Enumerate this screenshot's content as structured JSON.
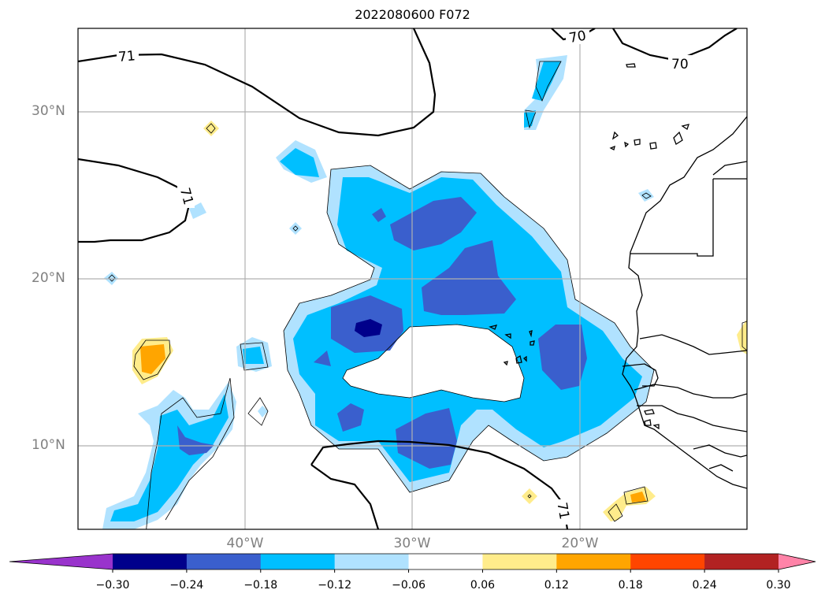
{
  "title": "2022080600 F072",
  "lat_labels": [
    "30°N",
    "20°N",
    "10°N"
  ],
  "lon_labels": [
    "40°W",
    "30°W",
    "20°W"
  ],
  "contour_labels": [
    "71",
    "71",
    "70",
    "70",
    "71"
  ],
  "colorbar": {
    "tick_labels": [
      "−0.30",
      "−0.24",
      "−0.18",
      "−0.12",
      "−0.06",
      "0.06",
      "0.12",
      "0.18",
      "0.24",
      "0.30"
    ],
    "colors": [
      "#9933cc",
      "#00008b",
      "#3a5fcd",
      "#00bfff",
      "#b0e2ff",
      "#ffffff",
      "#ffec8b",
      "#ffa500",
      "#ff4500",
      "#b22222",
      "#ff83a8"
    ]
  }
}
